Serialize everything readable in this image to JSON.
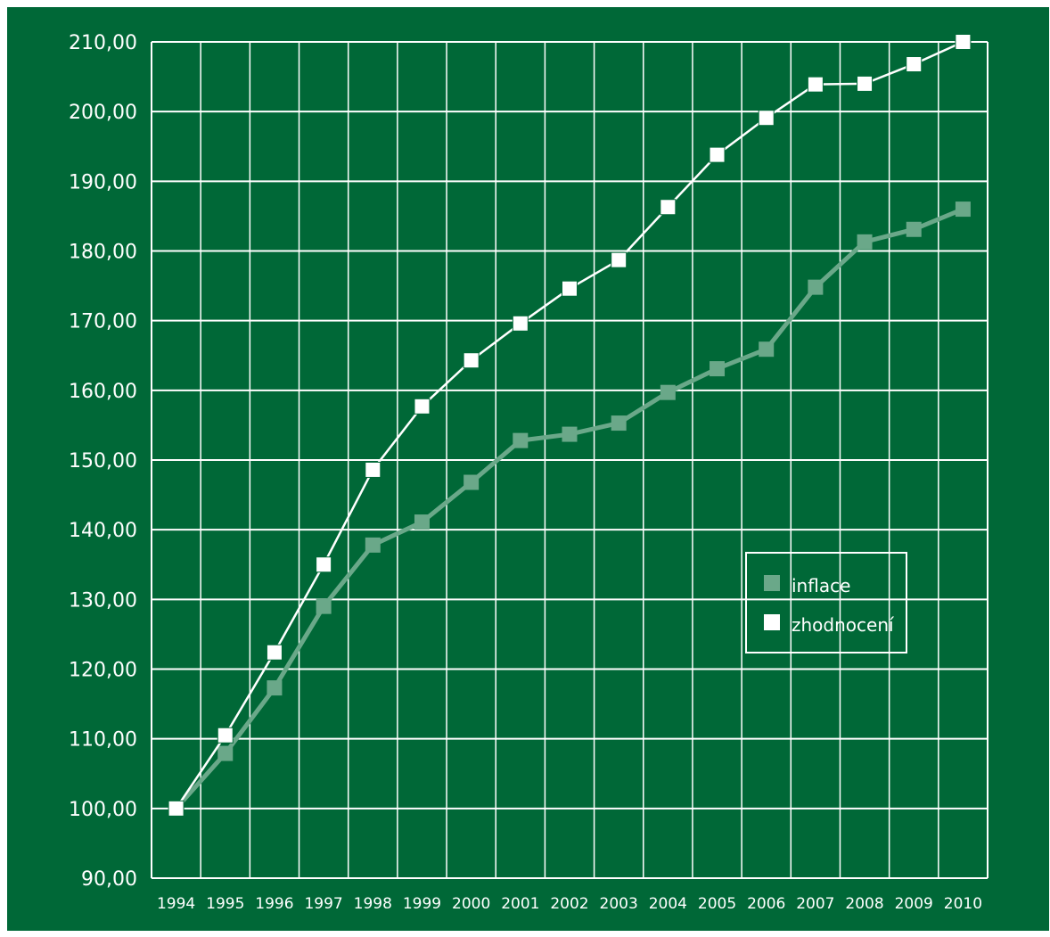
{
  "chart_data": {
    "type": "line",
    "title": "",
    "xlabel": "",
    "ylabel": "",
    "x": [
      "1994",
      "1995",
      "1996",
      "1997",
      "1998",
      "1999",
      "2000",
      "2001",
      "2002",
      "2003",
      "2004",
      "2005",
      "2006",
      "2007",
      "2008",
      "2009",
      "2010"
    ],
    "y_ticks": [
      "90,00",
      "100,00",
      "110,00",
      "120,00",
      "130,00",
      "140,00",
      "150,00",
      "160,00",
      "170,00",
      "180,00",
      "190,00",
      "200,00",
      "210,00"
    ],
    "ylim": [
      90,
      210
    ],
    "grid": true,
    "legend_position": "right",
    "series": [
      {
        "name": "inflace",
        "color": "#6aa889",
        "values": [
          100.0,
          107.9,
          117.3,
          129.0,
          137.8,
          141.1,
          146.8,
          152.8,
          153.7,
          155.3,
          159.7,
          163.1,
          165.9,
          174.8,
          181.3,
          183.1,
          186.0
        ]
      },
      {
        "name": "zhodnocení",
        "color": "#ffffff",
        "values": [
          100.0,
          110.5,
          122.4,
          135.0,
          148.6,
          157.7,
          164.3,
          169.6,
          174.6,
          178.7,
          186.3,
          193.8,
          199.1,
          203.9,
          204.0,
          206.8,
          210.0
        ]
      }
    ],
    "colors": {
      "background": "#006837",
      "grid": "#ffffff"
    }
  }
}
